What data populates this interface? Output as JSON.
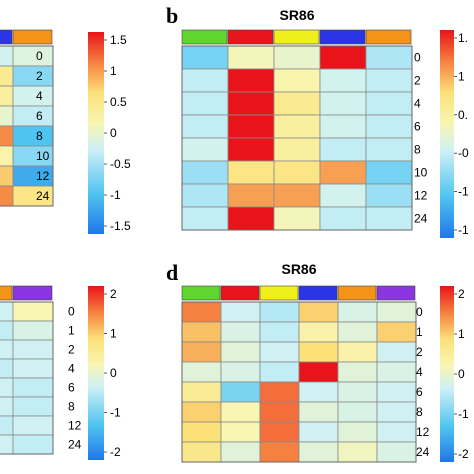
{
  "chart_data": [
    {
      "panel": "a",
      "type": "heatmap",
      "title": "",
      "rows": [
        "0",
        "2",
        "4",
        "6",
        "8",
        "10",
        "12",
        "24"
      ],
      "group_colors": [
        "#2a35e8",
        "#f39419"
      ],
      "values": [
        [
          -0.2,
          -0.1
        ],
        [
          0.4,
          -0.6
        ],
        [
          0.3,
          -0.2
        ],
        [
          0.0,
          -0.3
        ],
        [
          1.0,
          -0.9
        ],
        [
          0.2,
          -0.6
        ],
        [
          0.7,
          -1.1
        ],
        [
          1.0,
          0.5
        ]
      ],
      "colorbar": {
        "min": -1.5,
        "max": 1.5,
        "ticks": [
          "1.5",
          "1",
          "0.5",
          "0",
          "-0.5",
          "-1",
          "-1.5"
        ]
      }
    },
    {
      "panel": "b",
      "type": "heatmap",
      "title": "SR86",
      "rows": [
        "0",
        "2",
        "4",
        "6",
        "8",
        "10",
        "12",
        "24"
      ],
      "group_colors": [
        "#5ed62d",
        "#e8151b",
        "#efef1e",
        "#2a35e8",
        "#f39419"
      ],
      "values": [
        [
          -0.7,
          0.1,
          0.0,
          1.5,
          -0.4
        ],
        [
          -0.3,
          1.5,
          0.2,
          -0.2,
          -0.3
        ],
        [
          -0.3,
          1.5,
          0.4,
          -0.2,
          -0.3
        ],
        [
          -0.3,
          1.5,
          0.3,
          -0.2,
          -0.3
        ],
        [
          -0.2,
          1.5,
          0.3,
          -0.3,
          -0.3
        ],
        [
          -0.5,
          0.5,
          0.5,
          0.9,
          -0.7
        ],
        [
          -0.4,
          0.9,
          0.9,
          -0.2,
          -0.5
        ],
        [
          -0.3,
          1.5,
          0.1,
          -0.3,
          -0.3
        ]
      ],
      "colorbar": {
        "min": -1.5,
        "max": 1.5,
        "ticks": [
          "1.",
          "1",
          "0.",
          "-0",
          "-1",
          "-1"
        ]
      }
    },
    {
      "panel": "c",
      "type": "heatmap",
      "title": "",
      "rows": [
        "0",
        "1",
        "2",
        "4",
        "6",
        "8",
        "12",
        "24"
      ],
      "group_colors": [
        "#f39419",
        "#8a35e0"
      ],
      "values": [
        [
          -0.3,
          0.2
        ],
        [
          -0.4,
          -0.2
        ],
        [
          -0.3,
          -0.3
        ],
        [
          -0.4,
          -0.3
        ],
        [
          -0.3,
          -0.4
        ],
        [
          -0.3,
          -0.4
        ],
        [
          -0.4,
          -0.3
        ],
        [
          -0.3,
          -0.4
        ]
      ],
      "colorbar": {
        "min": -2,
        "max": 2,
        "ticks": [
          "2",
          "1",
          "0",
          "-1",
          "-2"
        ]
      }
    },
    {
      "panel": "d",
      "type": "heatmap",
      "title": "SR86",
      "rows": [
        "0",
        "1",
        "2",
        "4",
        "6",
        "8",
        "12",
        "24"
      ],
      "group_colors": [
        "#5ed62d",
        "#e8151b",
        "#efef1e",
        "#2a35e8",
        "#f39419",
        "#8a35e0"
      ],
      "values": [
        [
          1.4,
          -0.3,
          -0.5,
          0.9,
          -0.2,
          -0.1
        ],
        [
          1.0,
          -0.2,
          -0.4,
          0.3,
          -0.1,
          0.9
        ],
        [
          1.1,
          -0.1,
          -0.3,
          0.8,
          0.3,
          -0.3
        ],
        [
          -0.1,
          -0.2,
          -0.4,
          2.0,
          -0.1,
          -0.2
        ],
        [
          0.5,
          -0.9,
          1.5,
          -0.3,
          -0.2,
          -0.3
        ],
        [
          0.9,
          0.2,
          1.5,
          -0.1,
          -0.2,
          -0.3
        ],
        [
          0.8,
          0.2,
          1.5,
          -0.3,
          -0.1,
          -0.3
        ],
        [
          0.6,
          -0.1,
          1.4,
          -0.1,
          0.1,
          -0.2
        ]
      ],
      "colorbar": {
        "min": -2,
        "max": 2,
        "ticks": [
          "2",
          "1",
          "0",
          "-1",
          "-2"
        ]
      }
    }
  ]
}
